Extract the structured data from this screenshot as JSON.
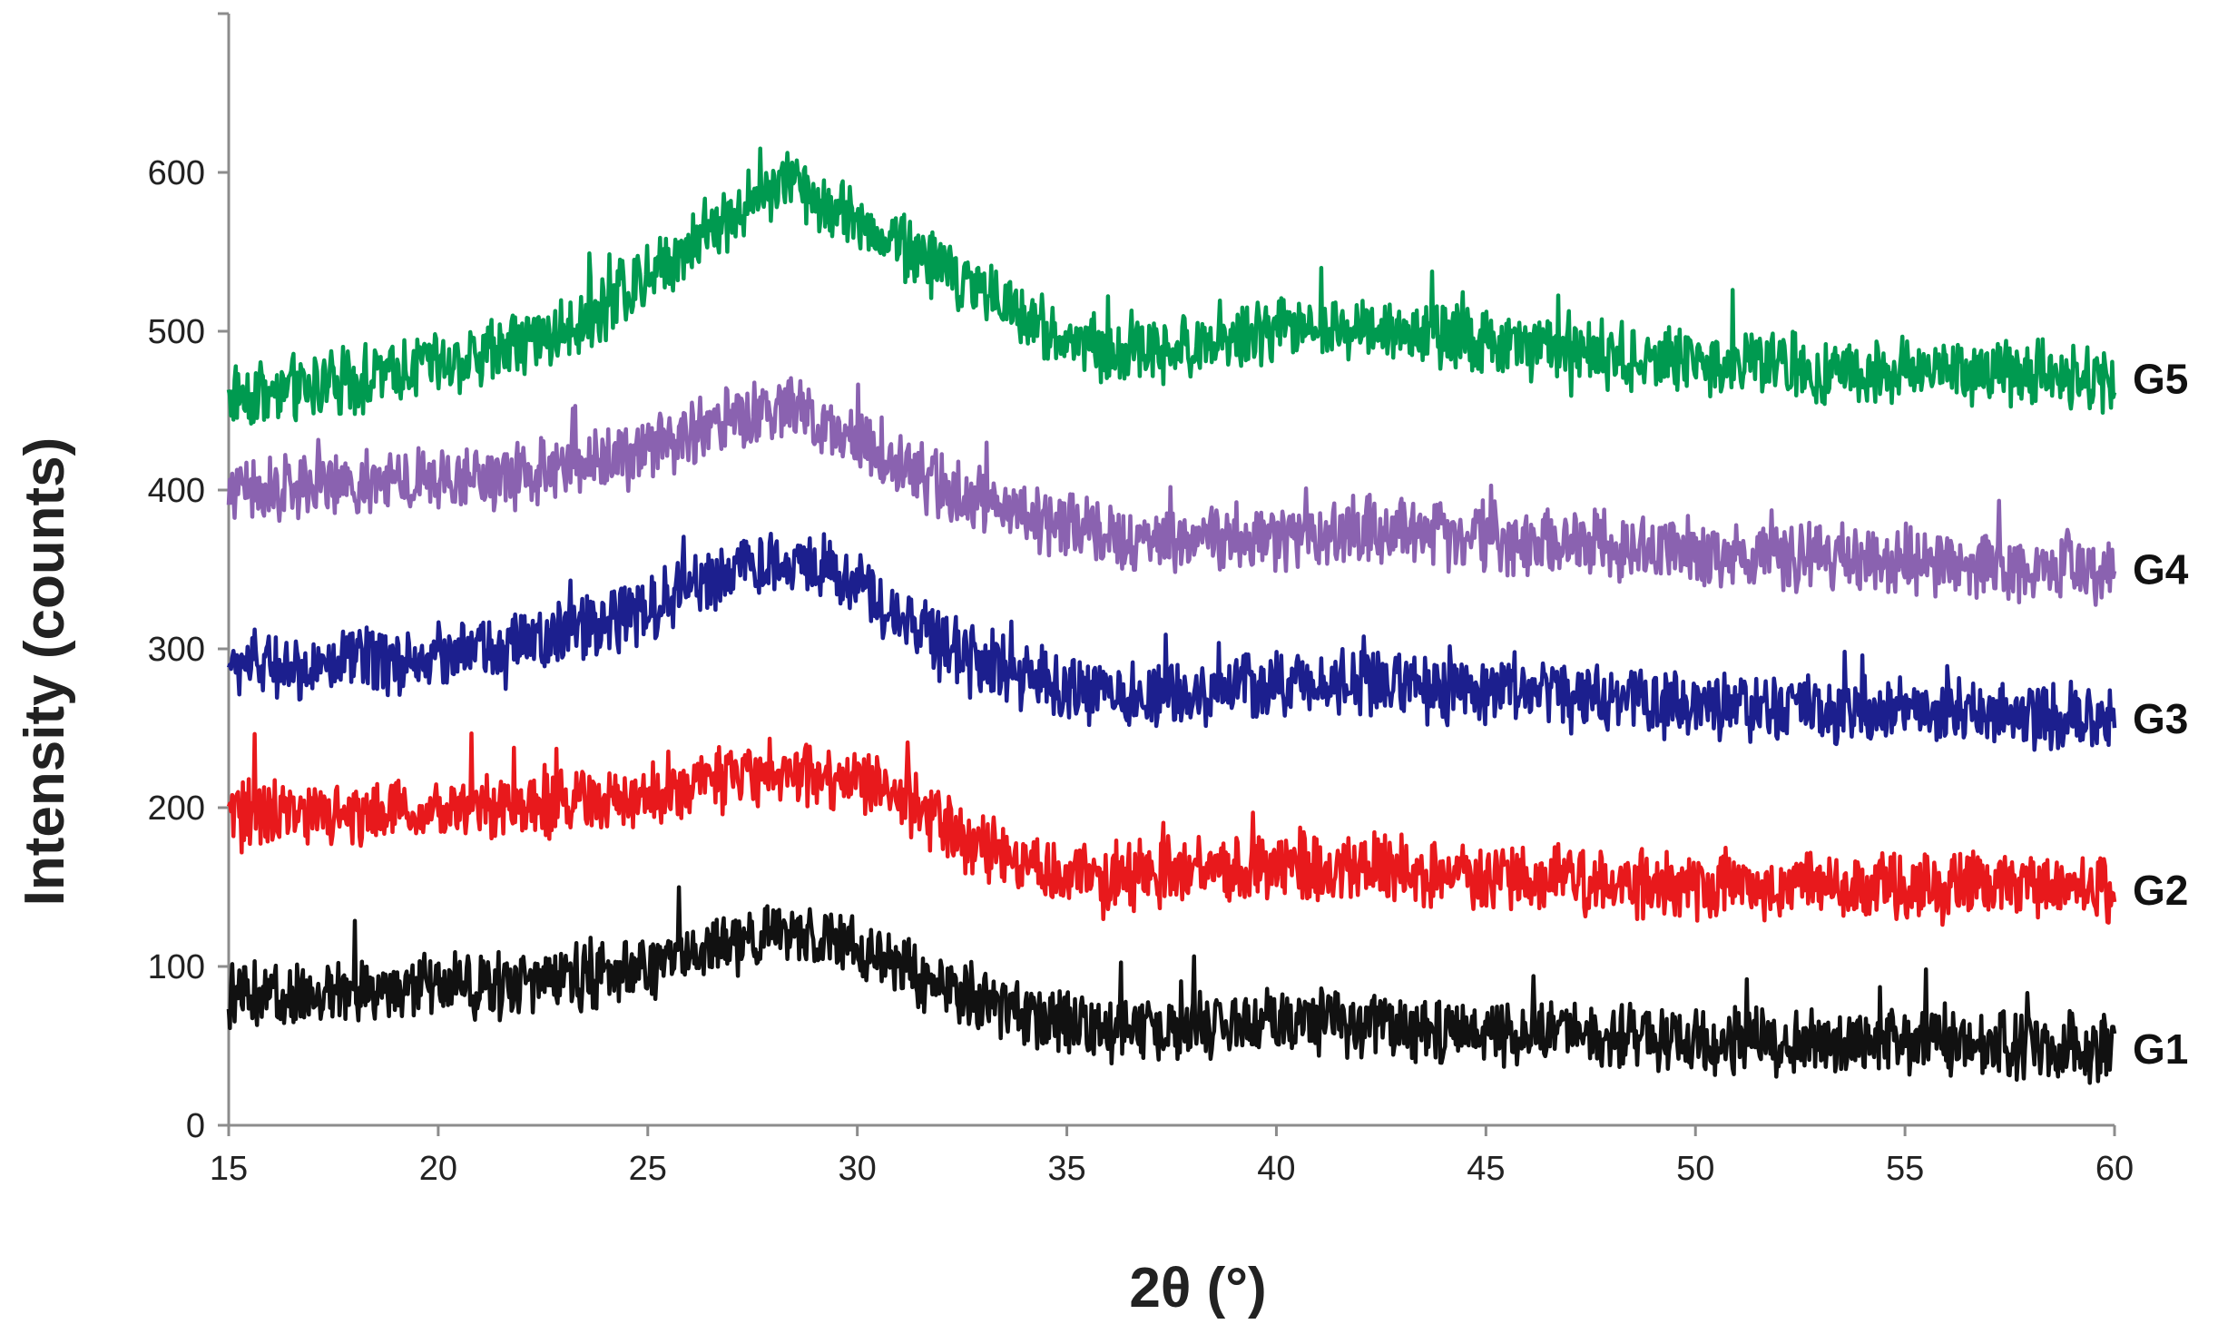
{
  "chart_data": {
    "type": "line",
    "title": "",
    "xlabel": "2θ (°)",
    "ylabel": "Intensity (counts)",
    "xlim": [
      15,
      60
    ],
    "ylim": [
      0,
      700
    ],
    "xticks": [
      15,
      20,
      25,
      30,
      35,
      40,
      45,
      50,
      55,
      60
    ],
    "yticks": [
      0,
      100,
      200,
      300,
      400,
      500,
      600
    ],
    "grid": false,
    "noise": "high-frequency noise of roughly ±20 counts around the profiles",
    "series": [
      {
        "name": "G5",
        "color": "#009a50",
        "x": [
          15,
          17,
          19,
          21,
          23,
          25,
          26,
          27,
          28,
          28.5,
          29,
          30,
          31,
          32,
          33,
          34,
          35,
          36,
          37,
          38,
          40,
          42,
          44,
          46,
          48,
          50,
          52,
          54,
          56,
          58,
          60
        ],
        "y": [
          460,
          465,
          475,
          485,
          500,
          535,
          555,
          575,
          590,
          595,
          585,
          570,
          555,
          540,
          525,
          510,
          495,
          485,
          490,
          490,
          500,
          505,
          495,
          490,
          485,
          480,
          478,
          475,
          474,
          472,
          470
        ]
      },
      {
        "name": "G4",
        "color": "#8a62b0",
        "x": [
          15,
          17,
          19,
          21,
          23,
          25,
          26,
          27,
          28,
          29,
          30,
          31,
          32,
          33,
          34,
          35,
          36,
          37,
          38,
          40,
          42,
          44,
          46,
          48,
          50,
          52,
          54,
          56,
          58,
          60
        ],
        "y": [
          400,
          402,
          405,
          408,
          413,
          425,
          435,
          445,
          450,
          445,
          430,
          415,
          403,
          392,
          385,
          378,
          372,
          368,
          368,
          370,
          375,
          372,
          368,
          365,
          360,
          358,
          355,
          353,
          352,
          350
        ]
      },
      {
        "name": "G3",
        "color": "#1c1f8e",
        "x": [
          15,
          17,
          19,
          21,
          23,
          25,
          26,
          27,
          28,
          29,
          30,
          31,
          32,
          33,
          34,
          35,
          36,
          37,
          38,
          40,
          42,
          44,
          46,
          48,
          50,
          52,
          54,
          56,
          58,
          60
        ],
        "y": [
          290,
          290,
          292,
          298,
          310,
          325,
          340,
          350,
          355,
          352,
          342,
          320,
          305,
          292,
          282,
          275,
          270,
          272,
          272,
          278,
          280,
          275,
          272,
          268,
          265,
          263,
          262,
          260,
          258,
          256
        ]
      },
      {
        "name": "G2",
        "color": "#e8191c",
        "x": [
          15,
          17,
          19,
          21,
          23,
          25,
          26,
          27,
          28,
          29,
          30,
          31,
          32,
          33,
          34,
          35,
          36,
          37,
          38,
          40,
          42,
          44,
          46,
          48,
          50,
          52,
          54,
          56,
          58,
          60
        ],
        "y": [
          195,
          195,
          198,
          200,
          203,
          208,
          215,
          220,
          222,
          220,
          216,
          208,
          190,
          175,
          165,
          160,
          158,
          158,
          160,
          162,
          162,
          158,
          155,
          153,
          152,
          150,
          150,
          150,
          150,
          148
        ]
      },
      {
        "name": "G1",
        "color": "#111111",
        "x": [
          15,
          17,
          19,
          21,
          23,
          25,
          26,
          27,
          28,
          29,
          30,
          31,
          32,
          33,
          34,
          35,
          36,
          37,
          38,
          40,
          42,
          44,
          46,
          48,
          50,
          52,
          54,
          56,
          58,
          60
        ],
        "y": [
          80,
          83,
          85,
          88,
          92,
          100,
          110,
          115,
          120,
          118,
          110,
          100,
          90,
          78,
          68,
          62,
          60,
          60,
          62,
          68,
          64,
          60,
          58,
          56,
          54,
          52,
          51,
          50,
          50,
          48
        ]
      }
    ]
  }
}
